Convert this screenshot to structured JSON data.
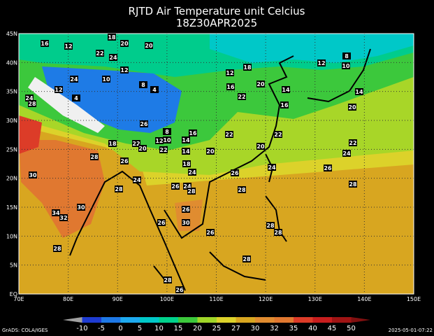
{
  "header": {
    "title": "RJTD Air Temperature unit Celcius",
    "subtitle": "18Z30APR2025"
  },
  "lat_labels": [
    "EQ",
    "5N",
    "10N",
    "15N",
    "20N",
    "25N",
    "30N",
    "35N",
    "40N",
    "45N"
  ],
  "lon_labels": [
    "70E",
    "80E",
    "90E",
    "100E",
    "110E",
    "120E",
    "130E",
    "140E",
    "150E"
  ],
  "colorbar": {
    "labels": [
      "-10",
      "-5",
      "0",
      "5",
      "10",
      "15",
      "20",
      "25",
      "27",
      "30",
      "32",
      "35",
      "40",
      "45",
      "50"
    ]
  },
  "contour_labels": [
    "16",
    "12",
    "18",
    "20",
    "20",
    "22",
    "24",
    "24",
    "10",
    "12",
    "8",
    "4",
    "4",
    "12",
    "24",
    "28",
    "26",
    "8",
    "10",
    "12",
    "16",
    "14",
    "18",
    "22",
    "20",
    "22",
    "14",
    "18",
    "20",
    "22",
    "16",
    "12",
    "18",
    "20",
    "22",
    "14",
    "16",
    "12",
    "8",
    "10",
    "14",
    "20",
    "22",
    "20",
    "22",
    "24",
    "26",
    "24",
    "26",
    "24",
    "24",
    "26",
    "28",
    "28",
    "28",
    "26",
    "28",
    "30",
    "24",
    "28",
    "30",
    "34",
    "32",
    "26",
    "30",
    "26",
    "26",
    "28",
    "28",
    "28",
    "28",
    "28",
    "26"
  ],
  "footer": {
    "left": "GrADS: COLA/IGES",
    "right": "2025-05-01-07:22"
  }
}
